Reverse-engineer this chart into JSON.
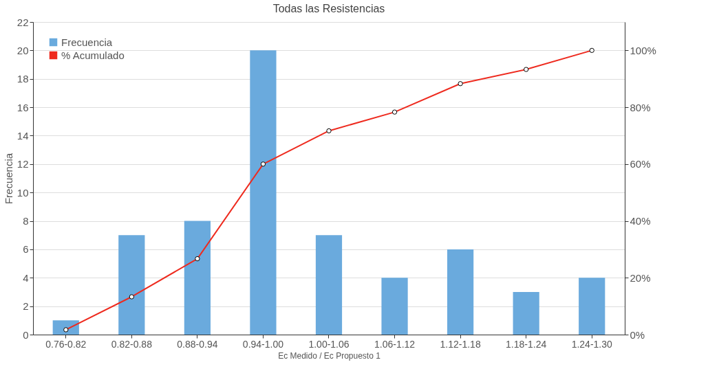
{
  "chart_data": {
    "type": "bar",
    "title": "Todas las Resistencias",
    "xlabel": "Ec Medido / Ec Propuesto 1",
    "ylabel": "Frecuencia",
    "categories": [
      "0.76-0.82",
      "0.82-0.88",
      "0.88-0.94",
      "0.94-1.00",
      "1.00-1.06",
      "1.06-1.12",
      "1.12-1.18",
      "1.18-1.24",
      "1.24-1.30"
    ],
    "series": [
      {
        "name": "Frecuencia",
        "color": "#6aaadd",
        "values": [
          1,
          7,
          8,
          20,
          7,
          4,
          6,
          3,
          4
        ]
      },
      {
        "name": "% Acumulado",
        "type": "line",
        "axis": "y2",
        "color": "#ee2a1e",
        "marker": "circle",
        "values": [
          1.7,
          13.3,
          26.7,
          60,
          71.7,
          78.3,
          88.3,
          93.3,
          100
        ]
      }
    ],
    "ylim": [
      0,
      22
    ],
    "yticks": [
      0,
      2,
      4,
      6,
      8,
      10,
      12,
      14,
      16,
      18,
      20,
      22
    ],
    "y2lim": [
      0,
      110
    ],
    "y2ticks": [
      {
        "value": 0,
        "label": "0%"
      },
      {
        "value": 20,
        "label": "20%"
      },
      {
        "value": 40,
        "label": "40%"
      },
      {
        "value": 60,
        "label": "60%"
      },
      {
        "value": 80,
        "label": "80%"
      },
      {
        "value": 100,
        "label": "100%"
      }
    ],
    "grid": "y",
    "legend": "top left"
  }
}
